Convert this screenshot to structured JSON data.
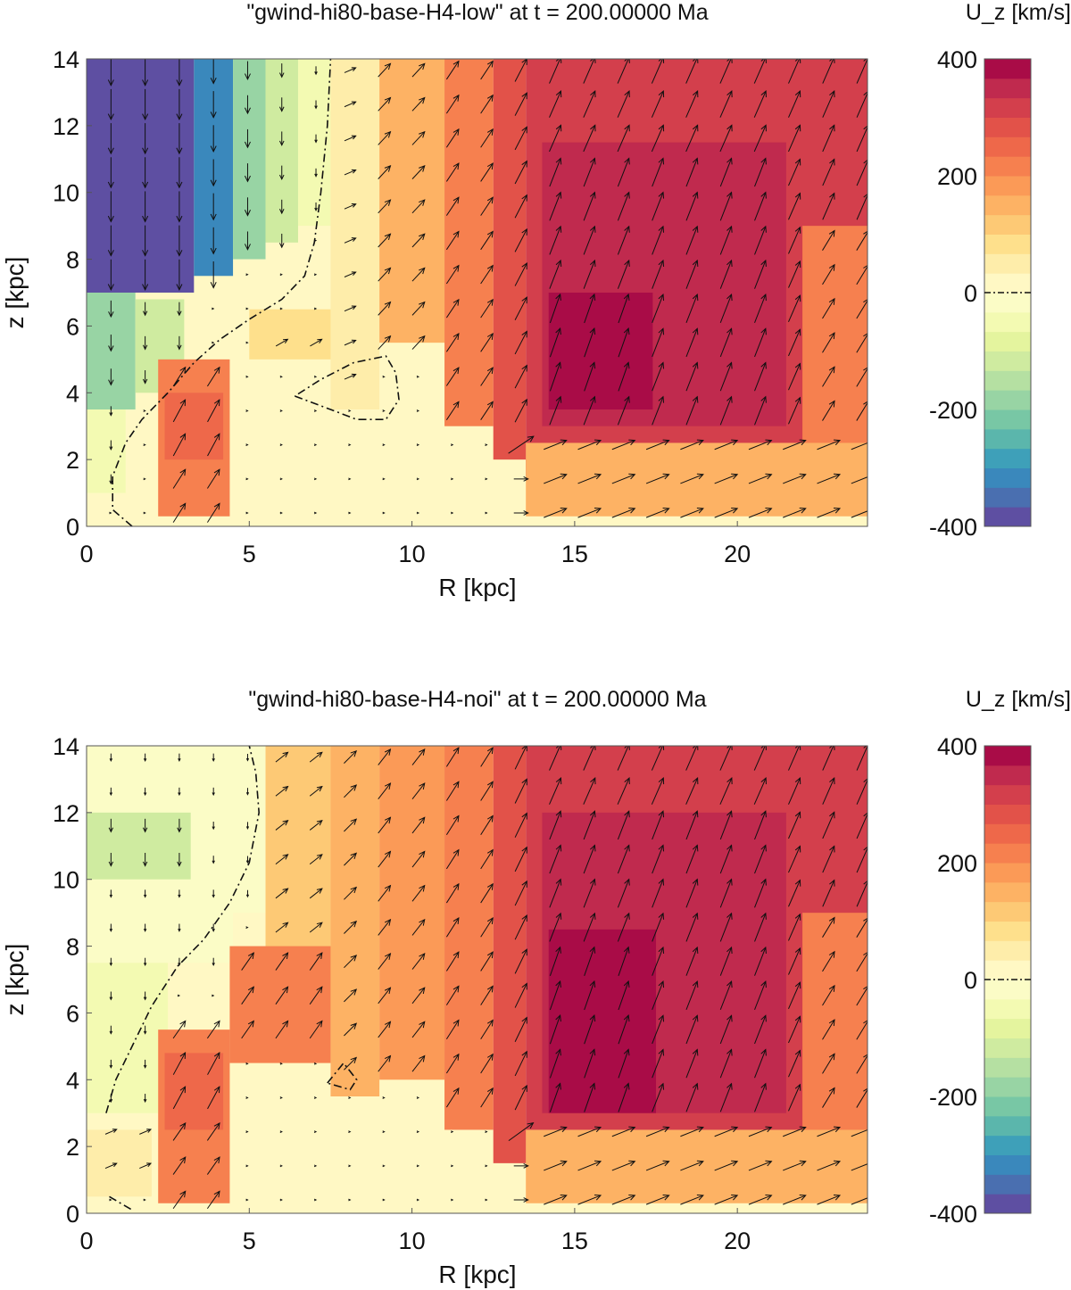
{
  "colorbar": {
    "title": "U_z [km/s]",
    "vmin": -400,
    "vmax": 400,
    "levels": 24,
    "ticks": [
      400,
      200,
      0,
      -200,
      -400
    ],
    "tick_labels": [
      "400",
      "200",
      "0",
      "-200",
      "-400"
    ],
    "zero_line_style": "dash-dot",
    "palette": [
      "#5e4fa2",
      "#4a6fb0",
      "#3a88bc",
      "#3ea0b9",
      "#5bb6ac",
      "#78c7a5",
      "#98d4a4",
      "#b5e0a2",
      "#cfeba0",
      "#e4f49e",
      "#f3fab2",
      "#fbfcc6",
      "#fff8c4",
      "#feedaa",
      "#fee08c",
      "#fdc975",
      "#fdb264",
      "#fb9a57",
      "#f6804f",
      "#ee684a",
      "#e25249",
      "#d33f4c",
      "#c02a4e",
      "#a90c47"
    ]
  },
  "chart_data": [
    {
      "type": "heatmap",
      "title": "\"gwind-hi80-base-H4-low\" at t = 200.00000 Ma",
      "xlabel": "R [kpc]",
      "ylabel": "z [kpc]",
      "xlim": [
        0,
        24
      ],
      "ylim": [
        0,
        14
      ],
      "xticks": [
        0,
        5,
        10,
        15,
        20
      ],
      "xtick_labels": [
        "0",
        "5",
        "10",
        "15",
        "20"
      ],
      "yticks": [
        0,
        2,
        4,
        6,
        8,
        10,
        12,
        14
      ],
      "ytick_labels": [
        "0",
        "2",
        "4",
        "6",
        "8",
        "10",
        "12",
        "14"
      ],
      "field": "U_z",
      "units": "km/s",
      "grid": false,
      "vector_overlay": true,
      "zero_contour": [
        {
          "R": [
            1.4,
            0.8,
            0.8,
            1.2,
            1.7,
            2.5,
            3.3,
            4.1,
            5.0,
            6.0,
            6.7,
            7.0,
            7.2,
            7.4,
            7.5
          ],
          "z": [
            0.0,
            0.5,
            1.5,
            2.5,
            3.2,
            4.0,
            4.9,
            5.6,
            6.2,
            6.8,
            7.5,
            8.5,
            10.0,
            12.0,
            14.0
          ]
        },
        {
          "R": [
            6.4,
            7.5,
            8.3,
            9.2,
            9.6,
            9.5,
            9.2,
            8.2,
            7.2,
            6.4
          ],
          "z": [
            3.9,
            3.5,
            3.2,
            3.2,
            3.8,
            4.6,
            5.1,
            4.9,
            4.4,
            3.9
          ]
        }
      ],
      "regions": [
        {
          "R": [
            0,
            3.3
          ],
          "z": [
            7.0,
            14.0
          ],
          "value": -400
        },
        {
          "R": [
            3.3,
            4.5
          ],
          "z": [
            7.5,
            14.0
          ],
          "value": -330
        },
        {
          "R": [
            4.5,
            5.5
          ],
          "z": [
            8.0,
            14.0
          ],
          "value": -200
        },
        {
          "R": [
            5.5,
            6.5
          ],
          "z": [
            8.5,
            14.0
          ],
          "value": -130
        },
        {
          "R": [
            0,
            1.5
          ],
          "z": [
            3.5,
            7.0
          ],
          "value": -170
        },
        {
          "R": [
            1.5,
            3.0
          ],
          "z": [
            4.0,
            6.8
          ],
          "value": -120
        },
        {
          "R": [
            0,
            1.2
          ],
          "z": [
            1.0,
            3.5
          ],
          "value": -60
        },
        {
          "R": [
            6.5,
            7.5
          ],
          "z": [
            9.0,
            14.0
          ],
          "value": -40
        },
        {
          "R": [
            7.5,
            9.0
          ],
          "z": [
            3.5,
            14.0
          ],
          "value": 60
        },
        {
          "R": [
            2.2,
            4.4
          ],
          "z": [
            0.3,
            5.0
          ],
          "value": 220
        },
        {
          "R": [
            2.4,
            4.2
          ],
          "z": [
            2.0,
            4.0
          ],
          "value": 260
        },
        {
          "R": [
            5.0,
            7.5
          ],
          "z": [
            5.0,
            6.5
          ],
          "value": 80
        },
        {
          "R": [
            9.0,
            11.0
          ],
          "z": [
            5.5,
            14.0
          ],
          "value": 150
        },
        {
          "R": [
            11.0,
            12.5
          ],
          "z": [
            3.0,
            14.0
          ],
          "value": 210
        },
        {
          "R": [
            12.5,
            13.5
          ],
          "z": [
            2.0,
            14.0
          ],
          "value": 270
        },
        {
          "R": [
            13.5,
            24.0
          ],
          "z": [
            1.5,
            14.0
          ],
          "value": 320
        },
        {
          "R": [
            14.0,
            21.5
          ],
          "z": [
            3.0,
            11.5
          ],
          "value": 360
        },
        {
          "R": [
            14.2,
            17.4
          ],
          "z": [
            3.5,
            7.0
          ],
          "value": 400
        },
        {
          "R": [
            22.0,
            24.0
          ],
          "z": [
            1.0,
            9.0
          ],
          "value": 230
        },
        {
          "R": [
            13.5,
            24.0
          ],
          "z": [
            0.3,
            2.5
          ],
          "value": 160
        }
      ]
    },
    {
      "type": "heatmap",
      "title": "\"gwind-hi80-base-H4-noi\" at t = 200.00000 Ma",
      "xlabel": "R [kpc]",
      "ylabel": "z [kpc]",
      "xlim": [
        0,
        24
      ],
      "ylim": [
        0,
        14
      ],
      "xticks": [
        0,
        5,
        10,
        15,
        20
      ],
      "xtick_labels": [
        "0",
        "5",
        "10",
        "15",
        "20"
      ],
      "yticks": [
        0,
        2,
        4,
        6,
        8,
        10,
        12,
        14
      ],
      "ytick_labels": [
        "0",
        "2",
        "4",
        "6",
        "8",
        "10",
        "12",
        "14"
      ],
      "field": "U_z",
      "units": "km/s",
      "grid": false,
      "vector_overlay": true,
      "zero_contour": [
        {
          "R": [
            0.6,
            0.9,
            1.4,
            2.0,
            2.8,
            3.6,
            4.4,
            5.0,
            5.3,
            5.2,
            5.0
          ],
          "z": [
            3.0,
            4.0,
            5.0,
            6.2,
            7.4,
            8.2,
            9.3,
            10.5,
            12.0,
            13.2,
            14.0
          ]
        },
        {
          "R": [
            0.7,
            1.4
          ],
          "z": [
            0.5,
            0.1
          ]
        },
        {
          "R": [
            7.4,
            7.9,
            8.3,
            8.1,
            7.4
          ],
          "z": [
            3.9,
            4.5,
            4.0,
            3.7,
            3.9
          ]
        }
      ],
      "regions": [
        {
          "R": [
            0,
            4.5
          ],
          "z": [
            7.5,
            14.0
          ],
          "value": -30
        },
        {
          "R": [
            0,
            3.2
          ],
          "z": [
            10.0,
            12.0
          ],
          "value": -120
        },
        {
          "R": [
            0,
            2.5
          ],
          "z": [
            3.0,
            7.5
          ],
          "value": -40
        },
        {
          "R": [
            4.5,
            5.5
          ],
          "z": [
            9.0,
            14.0
          ],
          "value": -20
        },
        {
          "R": [
            5.5,
            7.5
          ],
          "z": [
            6.0,
            14.0
          ],
          "value": 110
        },
        {
          "R": [
            7.5,
            9.0
          ],
          "z": [
            3.5,
            14.0
          ],
          "value": 140
        },
        {
          "R": [
            2.2,
            4.4
          ],
          "z": [
            0.3,
            5.5
          ],
          "value": 200
        },
        {
          "R": [
            2.4,
            4.2
          ],
          "z": [
            2.5,
            4.8
          ],
          "value": 260
        },
        {
          "R": [
            4.4,
            7.5
          ],
          "z": [
            4.5,
            8.0
          ],
          "value": 200
        },
        {
          "R": [
            9.0,
            11.0
          ],
          "z": [
            4.0,
            14.0
          ],
          "value": 180
        },
        {
          "R": [
            11.0,
            12.5
          ],
          "z": [
            2.5,
            14.0
          ],
          "value": 220
        },
        {
          "R": [
            12.5,
            13.5
          ],
          "z": [
            1.5,
            14.0
          ],
          "value": 290
        },
        {
          "R": [
            13.5,
            24.0
          ],
          "z": [
            1.5,
            14.0
          ],
          "value": 320
        },
        {
          "R": [
            14.0,
            21.5
          ],
          "z": [
            3.0,
            12.0
          ],
          "value": 360
        },
        {
          "R": [
            14.2,
            17.5
          ],
          "z": [
            3.0,
            8.5
          ],
          "value": 400
        },
        {
          "R": [
            22.0,
            24.0
          ],
          "z": [
            1.0,
            9.0
          ],
          "value": 230
        },
        {
          "R": [
            13.5,
            24.0
          ],
          "z": [
            0.3,
            2.5
          ],
          "value": 160
        },
        {
          "R": [
            0,
            2.0
          ],
          "z": [
            0.5,
            2.5
          ],
          "value": 60
        }
      ]
    }
  ]
}
